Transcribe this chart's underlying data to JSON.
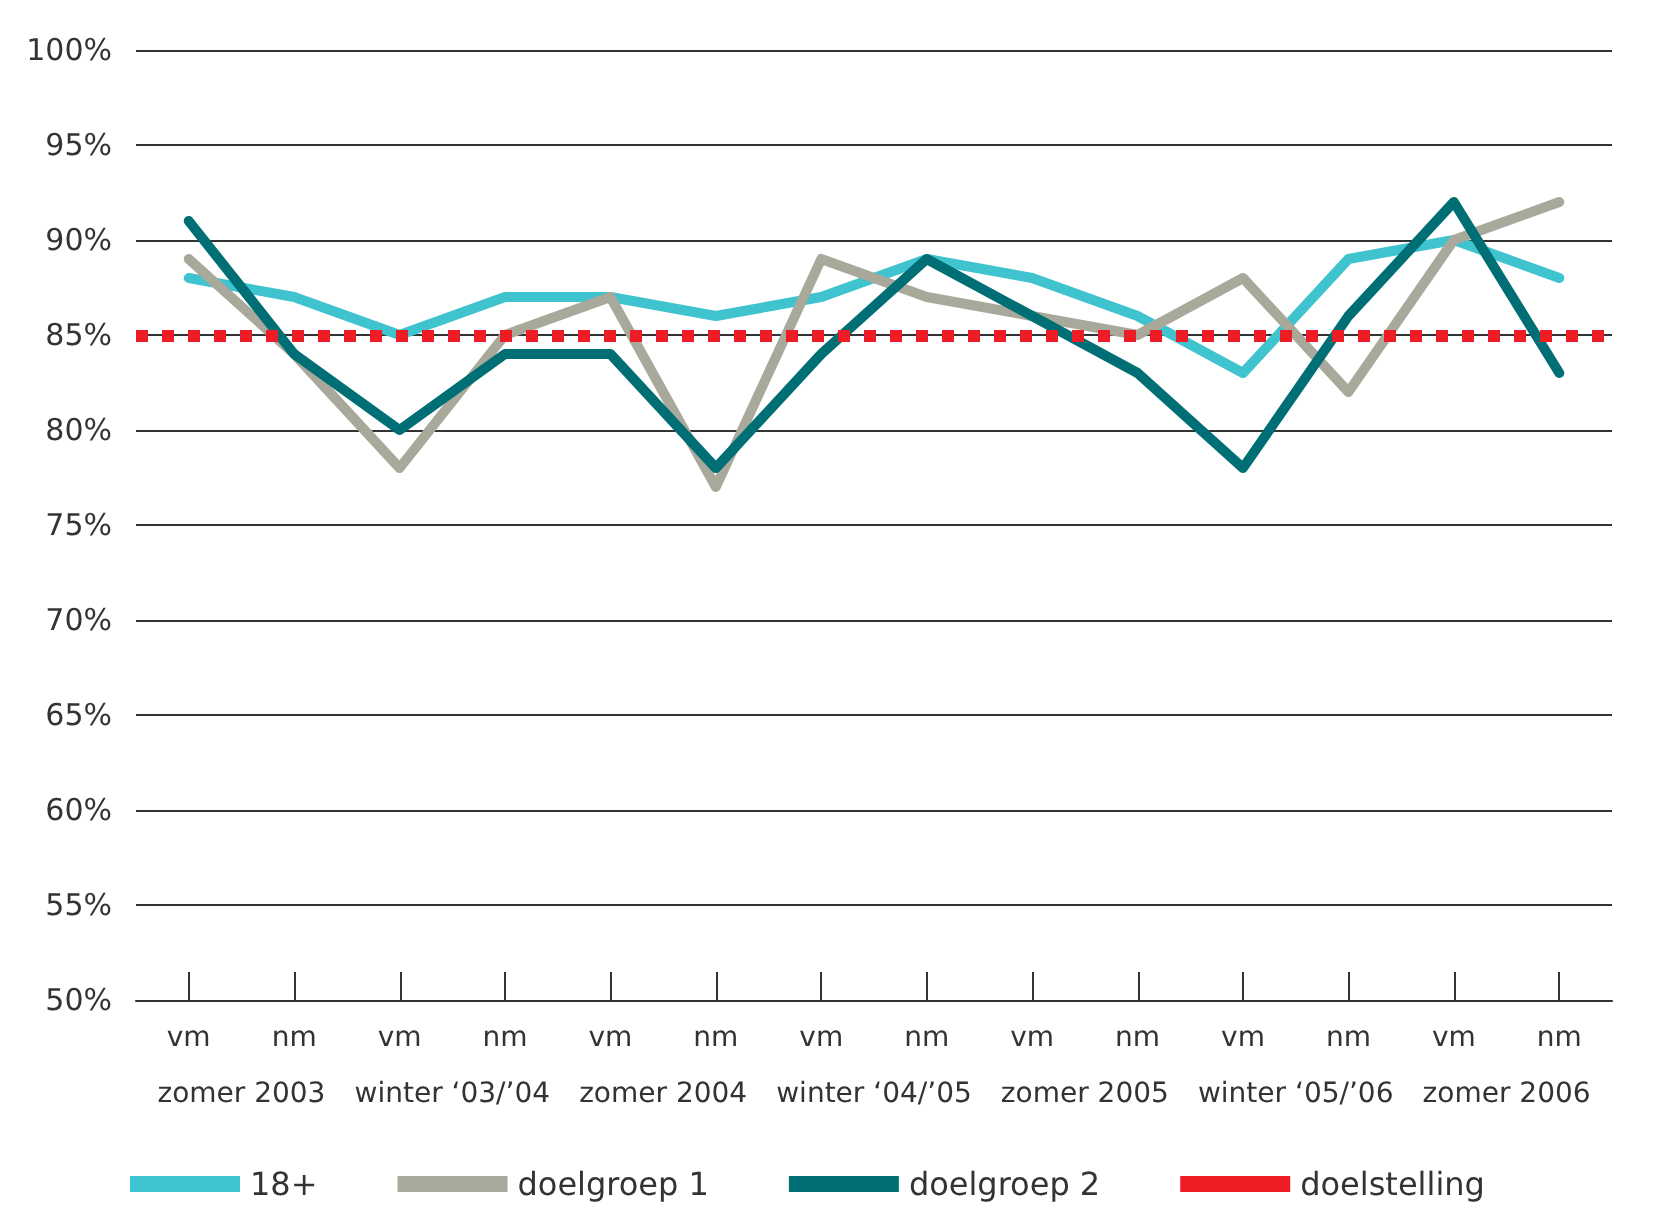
{
  "chart_data": {
    "type": "line",
    "categories": [
      "vm",
      "nm",
      "vm",
      "nm",
      "vm",
      "nm",
      "vm",
      "nm",
      "vm",
      "nm",
      "vm",
      "nm",
      "vm",
      "nm"
    ],
    "annotations": [
      "zomer 2003",
      "winter ‘03/’04",
      "zomer 2004",
      "winter ‘04/’05",
      "zomer 2005",
      "winter ‘05/’06",
      "zomer 2006"
    ],
    "series": [
      {
        "name": "18+",
        "color": "#3ec3cf",
        "values": [
          88,
          87,
          85,
          87,
          87,
          86,
          87,
          89,
          88,
          86,
          83,
          89,
          90,
          88
        ]
      },
      {
        "name": "doelgroep 1",
        "color": "#a9a99b",
        "values": [
          89,
          84,
          78,
          85,
          87,
          77,
          89,
          87,
          86,
          85,
          88,
          82,
          90,
          92
        ]
      },
      {
        "name": "doelgroep 2",
        "color": "#006e75",
        "values": [
          91,
          84,
          80,
          84,
          84,
          78,
          84,
          89,
          86,
          83,
          78,
          86,
          92,
          83
        ]
      }
    ],
    "ref_lines": [
      {
        "axis": "y",
        "value": 85,
        "label": "doelstelling",
        "color": "#ee1c25",
        "line_style": "dotted"
      }
    ],
    "ylim": [
      50,
      100
    ],
    "yticks": [
      {
        "value": 50,
        "label": "50%"
      },
      {
        "value": 55,
        "label": "55%"
      },
      {
        "value": 60,
        "label": "60%"
      },
      {
        "value": 65,
        "label": "65%"
      },
      {
        "value": 70,
        "label": "70%"
      },
      {
        "value": 75,
        "label": "75%"
      },
      {
        "value": 80,
        "label": "80%"
      },
      {
        "value": 85,
        "label": "85%"
      },
      {
        "value": 90,
        "label": "90%"
      },
      {
        "value": 95,
        "label": "95%"
      },
      {
        "value": 100,
        "label": "100%"
      }
    ],
    "grid": "y",
    "legend": "bottom",
    "marker": "none",
    "line_style": "solid"
  }
}
